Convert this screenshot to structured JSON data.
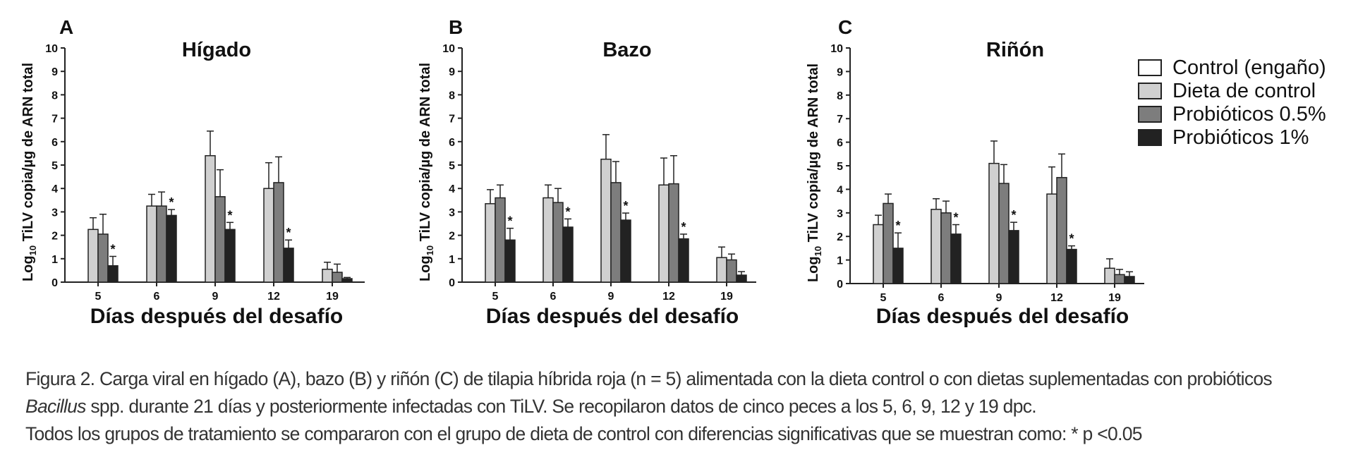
{
  "chart_data": [
    {
      "type": "bar",
      "panel": "A",
      "title": "Hígado",
      "xlabel": "Días después del desafío",
      "ylabel": "Log10 TiLV copia/µg de ARN total",
      "ylabel_parts": [
        "Log",
        "10",
        " TiLV copia/µg de ARN total"
      ],
      "ylim": [
        0,
        10
      ],
      "yticks": [
        "0",
        "1",
        "2",
        "3",
        "4",
        "5",
        "6",
        "7",
        "8",
        "9",
        "10"
      ],
      "categories": [
        "5",
        "6",
        "9",
        "12",
        "19"
      ],
      "series": [
        {
          "name": "Control (engaño)",
          "values": [
            null,
            null,
            null,
            null,
            null
          ],
          "errors": [
            null,
            null,
            null,
            null,
            null
          ]
        },
        {
          "name": "Dieta de control",
          "values": [
            2.25,
            3.25,
            5.4,
            4.0,
            0.55
          ],
          "errors": [
            0.5,
            0.5,
            1.05,
            1.1,
            0.3
          ]
        },
        {
          "name": "Probióticos 0.5%",
          "values": [
            2.05,
            3.25,
            3.65,
            4.25,
            0.42
          ],
          "errors": [
            0.85,
            0.6,
            1.15,
            1.1,
            0.35
          ]
        },
        {
          "name": "Probióticos 1%",
          "values": [
            0.7,
            2.85,
            2.25,
            1.45,
            0.15
          ],
          "errors": [
            0.4,
            0.25,
            0.3,
            0.35,
            0.05
          ]
        }
      ],
      "significant": [
        "*",
        "*",
        "*",
        "*",
        ""
      ]
    },
    {
      "type": "bar",
      "panel": "B",
      "title": "Bazo",
      "xlabel": "Días después del desafío",
      "ylabel": "Log10 TiLV copia/µg de ARN total",
      "ylabel_parts": [
        "Log",
        "10",
        " TiLV copia/µg de ARN total"
      ],
      "ylim": [
        0,
        10
      ],
      "yticks": [
        "0",
        "1",
        "2",
        "3",
        "4",
        "5",
        "6",
        "7",
        "8",
        "9",
        "10"
      ],
      "categories": [
        "5",
        "6",
        "9",
        "12",
        "19"
      ],
      "series": [
        {
          "name": "Control (engaño)",
          "values": [
            null,
            null,
            null,
            null,
            null
          ],
          "errors": [
            null,
            null,
            null,
            null,
            null
          ]
        },
        {
          "name": "Dieta de control",
          "values": [
            3.35,
            3.6,
            5.25,
            4.15,
            1.05
          ],
          "errors": [
            0.6,
            0.55,
            1.05,
            1.15,
            0.45
          ]
        },
        {
          "name": "Probióticos 0.5%",
          "values": [
            3.6,
            3.4,
            4.25,
            4.2,
            0.95
          ],
          "errors": [
            0.55,
            0.6,
            0.9,
            1.2,
            0.25
          ]
        },
        {
          "name": "Probióticos 1%",
          "values": [
            1.8,
            2.35,
            2.65,
            1.85,
            0.3
          ],
          "errors": [
            0.5,
            0.35,
            0.3,
            0.2,
            0.15
          ]
        }
      ],
      "significant": [
        "*",
        "*",
        "*",
        "*",
        ""
      ]
    },
    {
      "type": "bar",
      "panel": "C",
      "title": "Riñón",
      "xlabel": "Días después del desafío",
      "ylabel": "Log10 TiLV copia/µg de ARN total",
      "ylabel_parts": [
        "Log",
        "10",
        " TiLV copia/µg de ARN total"
      ],
      "ylim": [
        0,
        10
      ],
      "yticks": [
        "0",
        "1",
        "2",
        "3",
        "4",
        "5",
        "6",
        "7",
        "8",
        "9",
        "10"
      ],
      "categories": [
        "5",
        "6",
        "9",
        "12",
        "19"
      ],
      "series": [
        {
          "name": "Control (engaño)",
          "values": [
            null,
            null,
            null,
            null,
            null
          ],
          "errors": [
            null,
            null,
            null,
            null,
            null
          ]
        },
        {
          "name": "Dieta de control",
          "values": [
            2.5,
            3.15,
            5.1,
            3.8,
            0.65
          ],
          "errors": [
            0.4,
            0.45,
            0.95,
            1.15,
            0.4
          ]
        },
        {
          "name": "Probióticos 0.5%",
          "values": [
            3.4,
            3.0,
            4.25,
            4.5,
            0.38
          ],
          "errors": [
            0.4,
            0.5,
            0.8,
            1.0,
            0.22
          ]
        },
        {
          "name": "Probióticos 1%",
          "values": [
            1.5,
            2.1,
            2.25,
            1.45,
            0.3
          ],
          "errors": [
            0.65,
            0.4,
            0.35,
            0.15,
            0.2
          ]
        }
      ],
      "significant": [
        "*",
        "*",
        "*",
        "*",
        ""
      ]
    }
  ],
  "legend": [
    {
      "label": "Control (engaño)",
      "color": "#ffffff"
    },
    {
      "label": "Dieta de control",
      "color": "#d0d0d0"
    },
    {
      "label": "Probióticos 0.5%",
      "color": "#7d7d7d"
    },
    {
      "label": "Probióticos 1%",
      "color": "#222222"
    }
  ],
  "caption": {
    "line1": "Figura 2. Carga viral en hígado (A), bazo (B) y riñón (C) de tilapia híbrida roja (n = 5) alimentada con la dieta control o con dietas suplementadas con probióticos",
    "line2_italic": "Bacillus",
    "line2_rest": " spp. durante 21 días y posteriormente infectadas con TiLV. Se recopilaron datos de cinco peces a los 5, 6, 9, 12 y 19 dpc.",
    "line3": "Todos los grupos de tratamiento se compararon con el grupo de dieta de control con diferencias significativas que se muestran como: * p <0.05"
  }
}
